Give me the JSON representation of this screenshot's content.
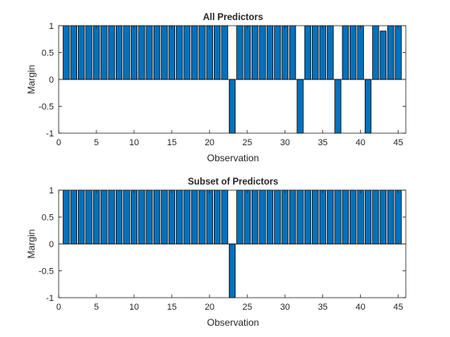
{
  "chart_data": [
    {
      "type": "bar",
      "title": "All Predictors",
      "xlabel": "Observation",
      "ylabel": "Margin",
      "xlim": [
        0,
        46
      ],
      "ylim": [
        -1,
        1
      ],
      "xticks": [
        0,
        5,
        10,
        15,
        20,
        25,
        30,
        35,
        40,
        45
      ],
      "yticks": [
        -1,
        -0.5,
        0,
        0.5,
        1
      ],
      "ytick_labels": [
        "-1",
        "-0.5",
        "0",
        "0.5",
        "1"
      ],
      "grid": false,
      "bar_color": "#0072BD",
      "x": [
        1,
        2,
        3,
        4,
        5,
        6,
        7,
        8,
        9,
        10,
        11,
        12,
        13,
        14,
        15,
        16,
        17,
        18,
        19,
        20,
        21,
        22,
        23,
        24,
        25,
        26,
        27,
        28,
        29,
        30,
        31,
        32,
        33,
        34,
        35,
        36,
        37,
        38,
        39,
        40,
        41,
        42,
        43,
        44,
        45
      ],
      "values": [
        1,
        1,
        1,
        1,
        1,
        1,
        1,
        1,
        1,
        1,
        1,
        1,
        1,
        1,
        1,
        1,
        1,
        1,
        1,
        1,
        1,
        1,
        -1,
        1,
        1,
        1,
        1,
        1,
        1,
        1,
        1,
        -1,
        1,
        1,
        1,
        1,
        -1,
        1,
        1,
        1,
        -1,
        1,
        0.9,
        1,
        1
      ]
    },
    {
      "type": "bar",
      "title": "Subset of Predictors",
      "xlabel": "Observation",
      "ylabel": "Margin",
      "xlim": [
        0,
        46
      ],
      "ylim": [
        -1,
        1
      ],
      "xticks": [
        0,
        5,
        10,
        15,
        20,
        25,
        30,
        35,
        40,
        45
      ],
      "yticks": [
        -1,
        -0.5,
        0,
        0.5,
        1
      ],
      "ytick_labels": [
        "-1",
        "-0.5",
        "0",
        "0.5",
        "1"
      ],
      "grid": false,
      "bar_color": "#0072BD",
      "x": [
        1,
        2,
        3,
        4,
        5,
        6,
        7,
        8,
        9,
        10,
        11,
        12,
        13,
        14,
        15,
        16,
        17,
        18,
        19,
        20,
        21,
        22,
        23,
        24,
        25,
        26,
        27,
        28,
        29,
        30,
        31,
        32,
        33,
        34,
        35,
        36,
        37,
        38,
        39,
        40,
        41,
        42,
        43,
        44,
        45
      ],
      "values": [
        1,
        1,
        1,
        1,
        1,
        1,
        1,
        1,
        1,
        1,
        1,
        1,
        1,
        1,
        1,
        1,
        1,
        1,
        1,
        1,
        1,
        1,
        -1,
        1,
        1,
        1,
        1,
        1,
        1,
        1,
        1,
        1,
        1,
        1,
        1,
        1,
        1,
        1,
        1,
        1,
        1,
        1,
        1,
        1,
        1
      ]
    }
  ]
}
